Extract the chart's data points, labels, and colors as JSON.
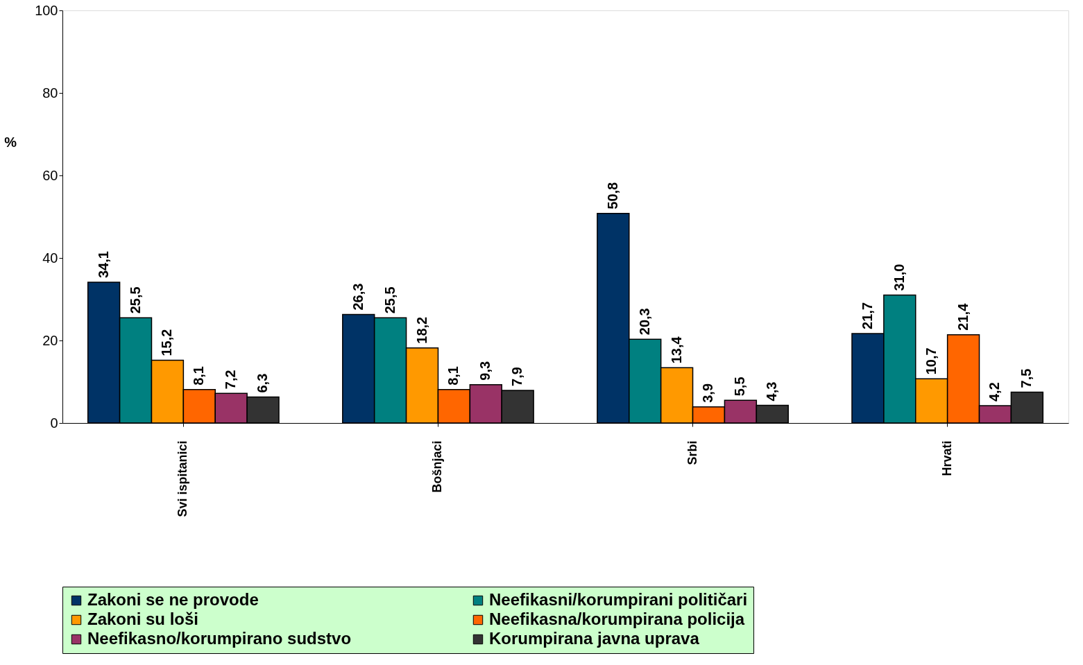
{
  "chart_data": {
    "type": "bar",
    "ylabel": "%",
    "categories": [
      "Svi ispitanici",
      "Bošnjaci",
      "Srbi",
      "Hrvati"
    ],
    "series": [
      {
        "name": "Zakoni se ne provode",
        "color": "#003366",
        "values": [
          34.1,
          26.3,
          50.8,
          21.7
        ],
        "value_labels": [
          "34,1",
          "26,3",
          "50,8",
          "21,7"
        ]
      },
      {
        "name": "Neefikasni/korumpirani političari",
        "color": "#008080",
        "values": [
          25.5,
          25.5,
          20.3,
          31.0
        ],
        "value_labels": [
          "25,5",
          "25,5",
          "20,3",
          "31,0"
        ]
      },
      {
        "name": "Zakoni su loši",
        "color": "#ff9900",
        "values": [
          15.2,
          18.2,
          13.4,
          10.7
        ],
        "value_labels": [
          "15,2",
          "18,2",
          "13,4",
          "10,7"
        ]
      },
      {
        "name": "Neefikasna/korumpirana policija",
        "color": "#ff6600",
        "values": [
          8.1,
          8.1,
          3.9,
          21.4
        ],
        "value_labels": [
          "8,1",
          "8,1",
          "3,9",
          "21,4"
        ]
      },
      {
        "name": "Neefikasno/korumpirano sudstvo",
        "color": "#993366",
        "values": [
          7.2,
          9.3,
          5.5,
          4.2
        ],
        "value_labels": [
          "7,2",
          "9,3",
          "5,5",
          "4,2"
        ]
      },
      {
        "name": "Korumpirana javna uprava",
        "color": "#333333",
        "values": [
          6.3,
          7.9,
          4.3,
          7.5
        ],
        "value_labels": [
          "6,3",
          "7,9",
          "4,3",
          "7,5"
        ]
      }
    ],
    "ylim": [
      0,
      100
    ],
    "yticks": [
      0,
      20,
      40,
      60,
      80,
      100
    ],
    "grid": false,
    "legend": "bottom"
  }
}
